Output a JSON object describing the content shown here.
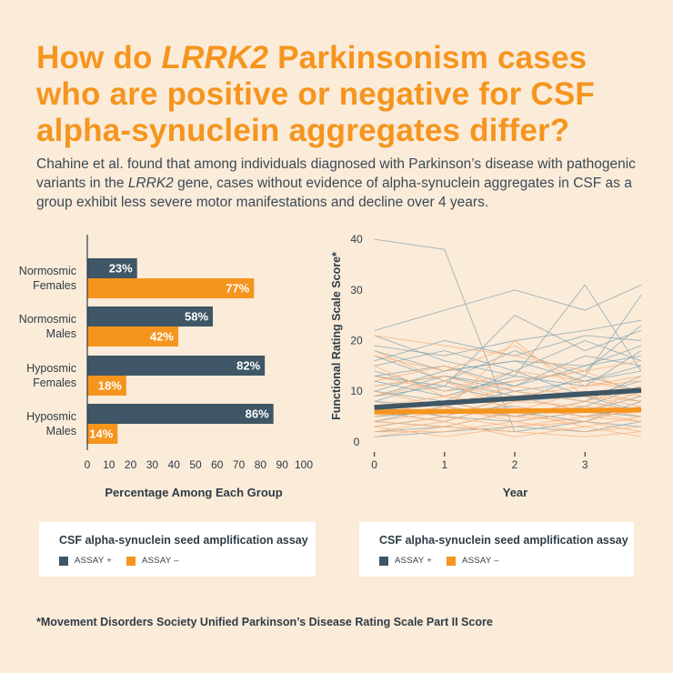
{
  "header": {
    "title_part1": "How do ",
    "title_italic": "LRRK2",
    "title_part2": " Parkinsonism cases who are positive or negative for CSF alpha-synuclein aggregates differ?",
    "subtitle_part1": "Chahine et al. found that among individuals diagnosed with Parkinson’s disease with pathogenic variants in the ",
    "subtitle_italic": "LRRK2",
    "subtitle_part2": " gene, cases without evidence of alpha-synuclein aggregates in CSF as a group exhibit less severe motor manifestations and decline over 4 years."
  },
  "colors": {
    "assay_pos": "#3e5665",
    "assay_neg": "#f5951e",
    "pos_light": "#7ea2ad",
    "neg_light": "#f6b07c"
  },
  "chart_data": [
    {
      "type": "bar",
      "orientation": "horizontal",
      "categories": [
        [
          "Normosmic",
          "Females"
        ],
        [
          "Normosmic",
          "Males"
        ],
        [
          "Hyposmic",
          "Females"
        ],
        [
          "Hyposmic",
          "Males"
        ]
      ],
      "series": [
        {
          "name": "ASSAY +",
          "values": [
            23,
            58,
            82,
            86
          ],
          "labels": [
            "23%",
            "58%",
            "82%",
            "86%"
          ]
        },
        {
          "name": "ASSAY –",
          "values": [
            77,
            42,
            18,
            14
          ],
          "labels": [
            "77%",
            "42%",
            "18%",
            "14%"
          ]
        }
      ],
      "xlabel": "Percentage Among Each Group",
      "xlim": [
        0,
        100
      ],
      "xticks": [
        0,
        10,
        20,
        30,
        40,
        50,
        60,
        70,
        80,
        90,
        100
      ]
    },
    {
      "type": "line",
      "xlabel": "Year",
      "ylabel": "Functional Rating Scale Score*",
      "xlim": [
        -0.15,
        3.8
      ],
      "ylim": [
        -2,
        42
      ],
      "xticks": [
        0,
        1,
        2,
        3
      ],
      "yticks": [
        0,
        10,
        20,
        30,
        40
      ],
      "series": [
        {
          "name": "ASSAY + (mean trend)",
          "x": [
            0,
            3.8
          ],
          "y": [
            6.8,
            10.2
          ]
        },
        {
          "name": "ASSAY – (mean trend)",
          "x": [
            0,
            3.8
          ],
          "y": [
            5.9,
            6.3
          ]
        }
      ],
      "individual_trajectories": {
        "assay_pos": [
          [
            [
              0,
              40
            ],
            [
              1,
              38
            ],
            [
              2,
              2
            ]
          ],
          [
            [
              0,
              22
            ],
            [
              1,
              26
            ],
            [
              2,
              30
            ],
            [
              3,
              26
            ],
            [
              3.8,
              31
            ]
          ],
          [
            [
              0,
              21
            ],
            [
              1,
              16
            ],
            [
              2,
              13
            ],
            [
              3,
              31
            ],
            [
              3.8,
              14
            ]
          ],
          [
            [
              0,
              19
            ],
            [
              1,
              17
            ],
            [
              2,
              20
            ],
            [
              3,
              22
            ],
            [
              3.8,
              24
            ]
          ],
          [
            [
              0,
              18
            ],
            [
              1,
              14
            ],
            [
              2,
              16
            ],
            [
              3,
              15
            ],
            [
              3.8,
              19
            ]
          ],
          [
            [
              0,
              17
            ],
            [
              1,
              12
            ],
            [
              2,
              18
            ],
            [
              3,
              13
            ],
            [
              3.8,
              29
            ]
          ],
          [
            [
              0,
              15
            ],
            [
              1,
              18
            ],
            [
              2,
              14
            ],
            [
              3,
              20
            ],
            [
              3.8,
              16
            ]
          ],
          [
            [
              0,
              14
            ],
            [
              1,
              10
            ],
            [
              2,
              12
            ],
            [
              3,
              14
            ],
            [
              3.8,
              23
            ]
          ],
          [
            [
              0,
              13
            ],
            [
              1,
              15
            ],
            [
              2,
              11
            ],
            [
              3,
              17
            ],
            [
              3.8,
              15
            ]
          ],
          [
            [
              0,
              12
            ],
            [
              1,
              9
            ],
            [
              2,
              13
            ],
            [
              3,
              11
            ],
            [
              3.8,
              18
            ]
          ],
          [
            [
              0,
              11
            ],
            [
              1,
              13
            ],
            [
              2,
              10
            ],
            [
              3,
              12
            ],
            [
              3.8,
              14
            ]
          ],
          [
            [
              0,
              10
            ],
            [
              1,
              8
            ],
            [
              2,
              14
            ],
            [
              3,
              9
            ],
            [
              3.8,
              12
            ]
          ],
          [
            [
              0,
              9
            ],
            [
              1,
              11
            ],
            [
              2,
              8
            ],
            [
              3,
              13
            ],
            [
              3.8,
              10
            ]
          ],
          [
            [
              0,
              8
            ],
            [
              1,
              7
            ],
            [
              2,
              10
            ],
            [
              3,
              8
            ],
            [
              3.8,
              13
            ]
          ],
          [
            [
              0,
              8
            ],
            [
              1,
              12
            ],
            [
              2,
              9
            ],
            [
              3,
              6
            ],
            [
              3.8,
              9
            ]
          ],
          [
            [
              0,
              7
            ],
            [
              1,
              5
            ],
            [
              2,
              9
            ],
            [
              3,
              10
            ],
            [
              3.8,
              8
            ]
          ],
          [
            [
              0,
              6
            ],
            [
              1,
              8
            ],
            [
              2,
              5
            ],
            [
              3,
              7
            ],
            [
              3.8,
              11
            ]
          ],
          [
            [
              0,
              5
            ],
            [
              1,
              6
            ],
            [
              2,
              7
            ],
            [
              3,
              5
            ],
            [
              3.8,
              7
            ]
          ],
          [
            [
              0,
              4
            ],
            [
              1,
              3
            ],
            [
              2,
              6
            ],
            [
              3,
              4
            ],
            [
              3.8,
              8
            ]
          ],
          [
            [
              0,
              3
            ],
            [
              1,
              5
            ],
            [
              2,
              4
            ],
            [
              3,
              6
            ],
            [
              3.8,
              5
            ]
          ],
          [
            [
              0,
              2
            ],
            [
              1,
              3
            ],
            [
              2,
              2
            ],
            [
              3,
              4
            ],
            [
              3.8,
              3
            ]
          ],
          [
            [
              0,
              16
            ],
            [
              1,
              20
            ],
            [
              2,
              17
            ],
            [
              3,
              21
            ],
            [
              3.8,
              20
            ]
          ],
          [
            [
              0,
              10
            ],
            [
              1,
              14
            ],
            [
              2,
              16
            ],
            [
              3,
              12
            ],
            [
              3.8,
              15
            ]
          ],
          [
            [
              0,
              6
            ],
            [
              1,
              4
            ],
            [
              2,
              8
            ],
            [
              3,
              9
            ],
            [
              3.8,
              6
            ]
          ],
          [
            [
              0,
              1
            ],
            [
              1,
              2
            ],
            [
              2,
              3
            ],
            [
              3,
              2
            ],
            [
              3.8,
              4
            ]
          ],
          [
            [
              0,
              13
            ],
            [
              1,
              11
            ],
            [
              2,
              25
            ],
            [
              3,
              18
            ],
            [
              3.8,
              22
            ]
          ],
          [
            [
              0,
              9
            ],
            [
              1,
              13
            ],
            [
              2,
              11
            ],
            [
              3,
              15
            ],
            [
              3.8,
              17
            ]
          ],
          [
            [
              0,
              4
            ],
            [
              1,
              7
            ],
            [
              2,
              5
            ],
            [
              3,
              8
            ],
            [
              3.8,
              6
            ]
          ]
        ],
        "assay_neg": [
          [
            [
              0,
              21
            ],
            [
              1,
              19
            ],
            [
              2,
              17
            ],
            [
              3,
              14
            ],
            [
              3.8,
              16
            ]
          ],
          [
            [
              0,
              17
            ],
            [
              1,
              14
            ],
            [
              2,
              19
            ],
            [
              3,
              11
            ],
            [
              3.8,
              13
            ]
          ],
          [
            [
              0,
              15
            ],
            [
              1,
              9
            ],
            [
              2,
              12
            ],
            [
              3,
              14
            ],
            [
              3.8,
              9
            ]
          ],
          [
            [
              0,
              12
            ],
            [
              1,
              15
            ],
            [
              2,
              10
            ],
            [
              3,
              8
            ],
            [
              3.8,
              11
            ]
          ],
          [
            [
              0,
              10
            ],
            [
              1,
              7
            ],
            [
              2,
              11
            ],
            [
              3,
              9
            ],
            [
              3.8,
              7
            ]
          ],
          [
            [
              0,
              9
            ],
            [
              1,
              12
            ],
            [
              2,
              6
            ],
            [
              3,
              10
            ],
            [
              3.8,
              8
            ]
          ],
          [
            [
              0,
              8
            ],
            [
              1,
              5
            ],
            [
              2,
              9
            ],
            [
              3,
              6
            ],
            [
              3.8,
              10
            ]
          ],
          [
            [
              0,
              7
            ],
            [
              1,
              9
            ],
            [
              2,
              7
            ],
            [
              3,
              5
            ],
            [
              3.8,
              6
            ]
          ],
          [
            [
              0,
              6
            ],
            [
              1,
              4
            ],
            [
              2,
              8
            ],
            [
              3,
              7
            ],
            [
              3.8,
              5
            ]
          ],
          [
            [
              0,
              5
            ],
            [
              1,
              7
            ],
            [
              2,
              4
            ],
            [
              3,
              6
            ],
            [
              3.8,
              4
            ]
          ],
          [
            [
              0,
              4
            ],
            [
              1,
              3
            ],
            [
              2,
              6
            ],
            [
              3,
              3
            ],
            [
              3.8,
              5
            ]
          ],
          [
            [
              0,
              3
            ],
            [
              1,
              5
            ],
            [
              2,
              3
            ],
            [
              3,
              4
            ],
            [
              3.8,
              2
            ]
          ],
          [
            [
              0,
              2
            ],
            [
              1,
              2
            ],
            [
              2,
              4
            ],
            [
              3,
              2
            ],
            [
              3.8,
              3
            ]
          ],
          [
            [
              0,
              1
            ],
            [
              1,
              3
            ],
            [
              2,
              2
            ],
            [
              3,
              1
            ],
            [
              3.8,
              2
            ]
          ],
          [
            [
              0,
              13
            ],
            [
              1,
              10
            ],
            [
              2,
              14
            ],
            [
              3,
              12
            ],
            [
              3.8,
              10
            ]
          ],
          [
            [
              0,
              11
            ],
            [
              1,
              13
            ],
            [
              2,
              9
            ],
            [
              3,
              11
            ],
            [
              3.8,
              12
            ]
          ],
          [
            [
              0,
              6
            ],
            [
              1,
              8
            ],
            [
              2,
              5
            ],
            [
              3,
              4
            ],
            [
              3.8,
              7
            ]
          ],
          [
            [
              0,
              4
            ],
            [
              1,
              6
            ],
            [
              2,
              5
            ],
            [
              3,
              8
            ],
            [
              3.8,
              6
            ]
          ],
          [
            [
              0,
              18
            ],
            [
              1,
              12
            ],
            [
              2,
              8
            ],
            [
              3,
              10
            ],
            [
              3.8,
              9
            ]
          ],
          [
            [
              0,
              2
            ],
            [
              1,
              4
            ],
            [
              2,
              1
            ],
            [
              3,
              3
            ],
            [
              3.8,
              1
            ]
          ],
          [
            [
              0,
              7
            ],
            [
              1,
              6
            ],
            [
              2,
              20
            ],
            [
              3,
              9
            ],
            [
              3.8,
              8
            ]
          ],
          [
            [
              0,
              3
            ],
            [
              1,
              1
            ],
            [
              2,
              3
            ],
            [
              3,
              5
            ],
            [
              3.8,
              4
            ]
          ]
        ]
      }
    }
  ],
  "legend_left": {
    "title": "CSF alpha-synuclein seed amplification assay",
    "pos_label": "ASSAY +",
    "neg_label": "ASSAY –"
  },
  "legend_right": {
    "title": "CSF alpha-synuclein seed amplification assay",
    "pos_label": "ASSAY +",
    "neg_label": "ASSAY –"
  },
  "footnote": "*Movement Disorders Society Unified Parkinson’s Disease Rating Scale Part II Score"
}
